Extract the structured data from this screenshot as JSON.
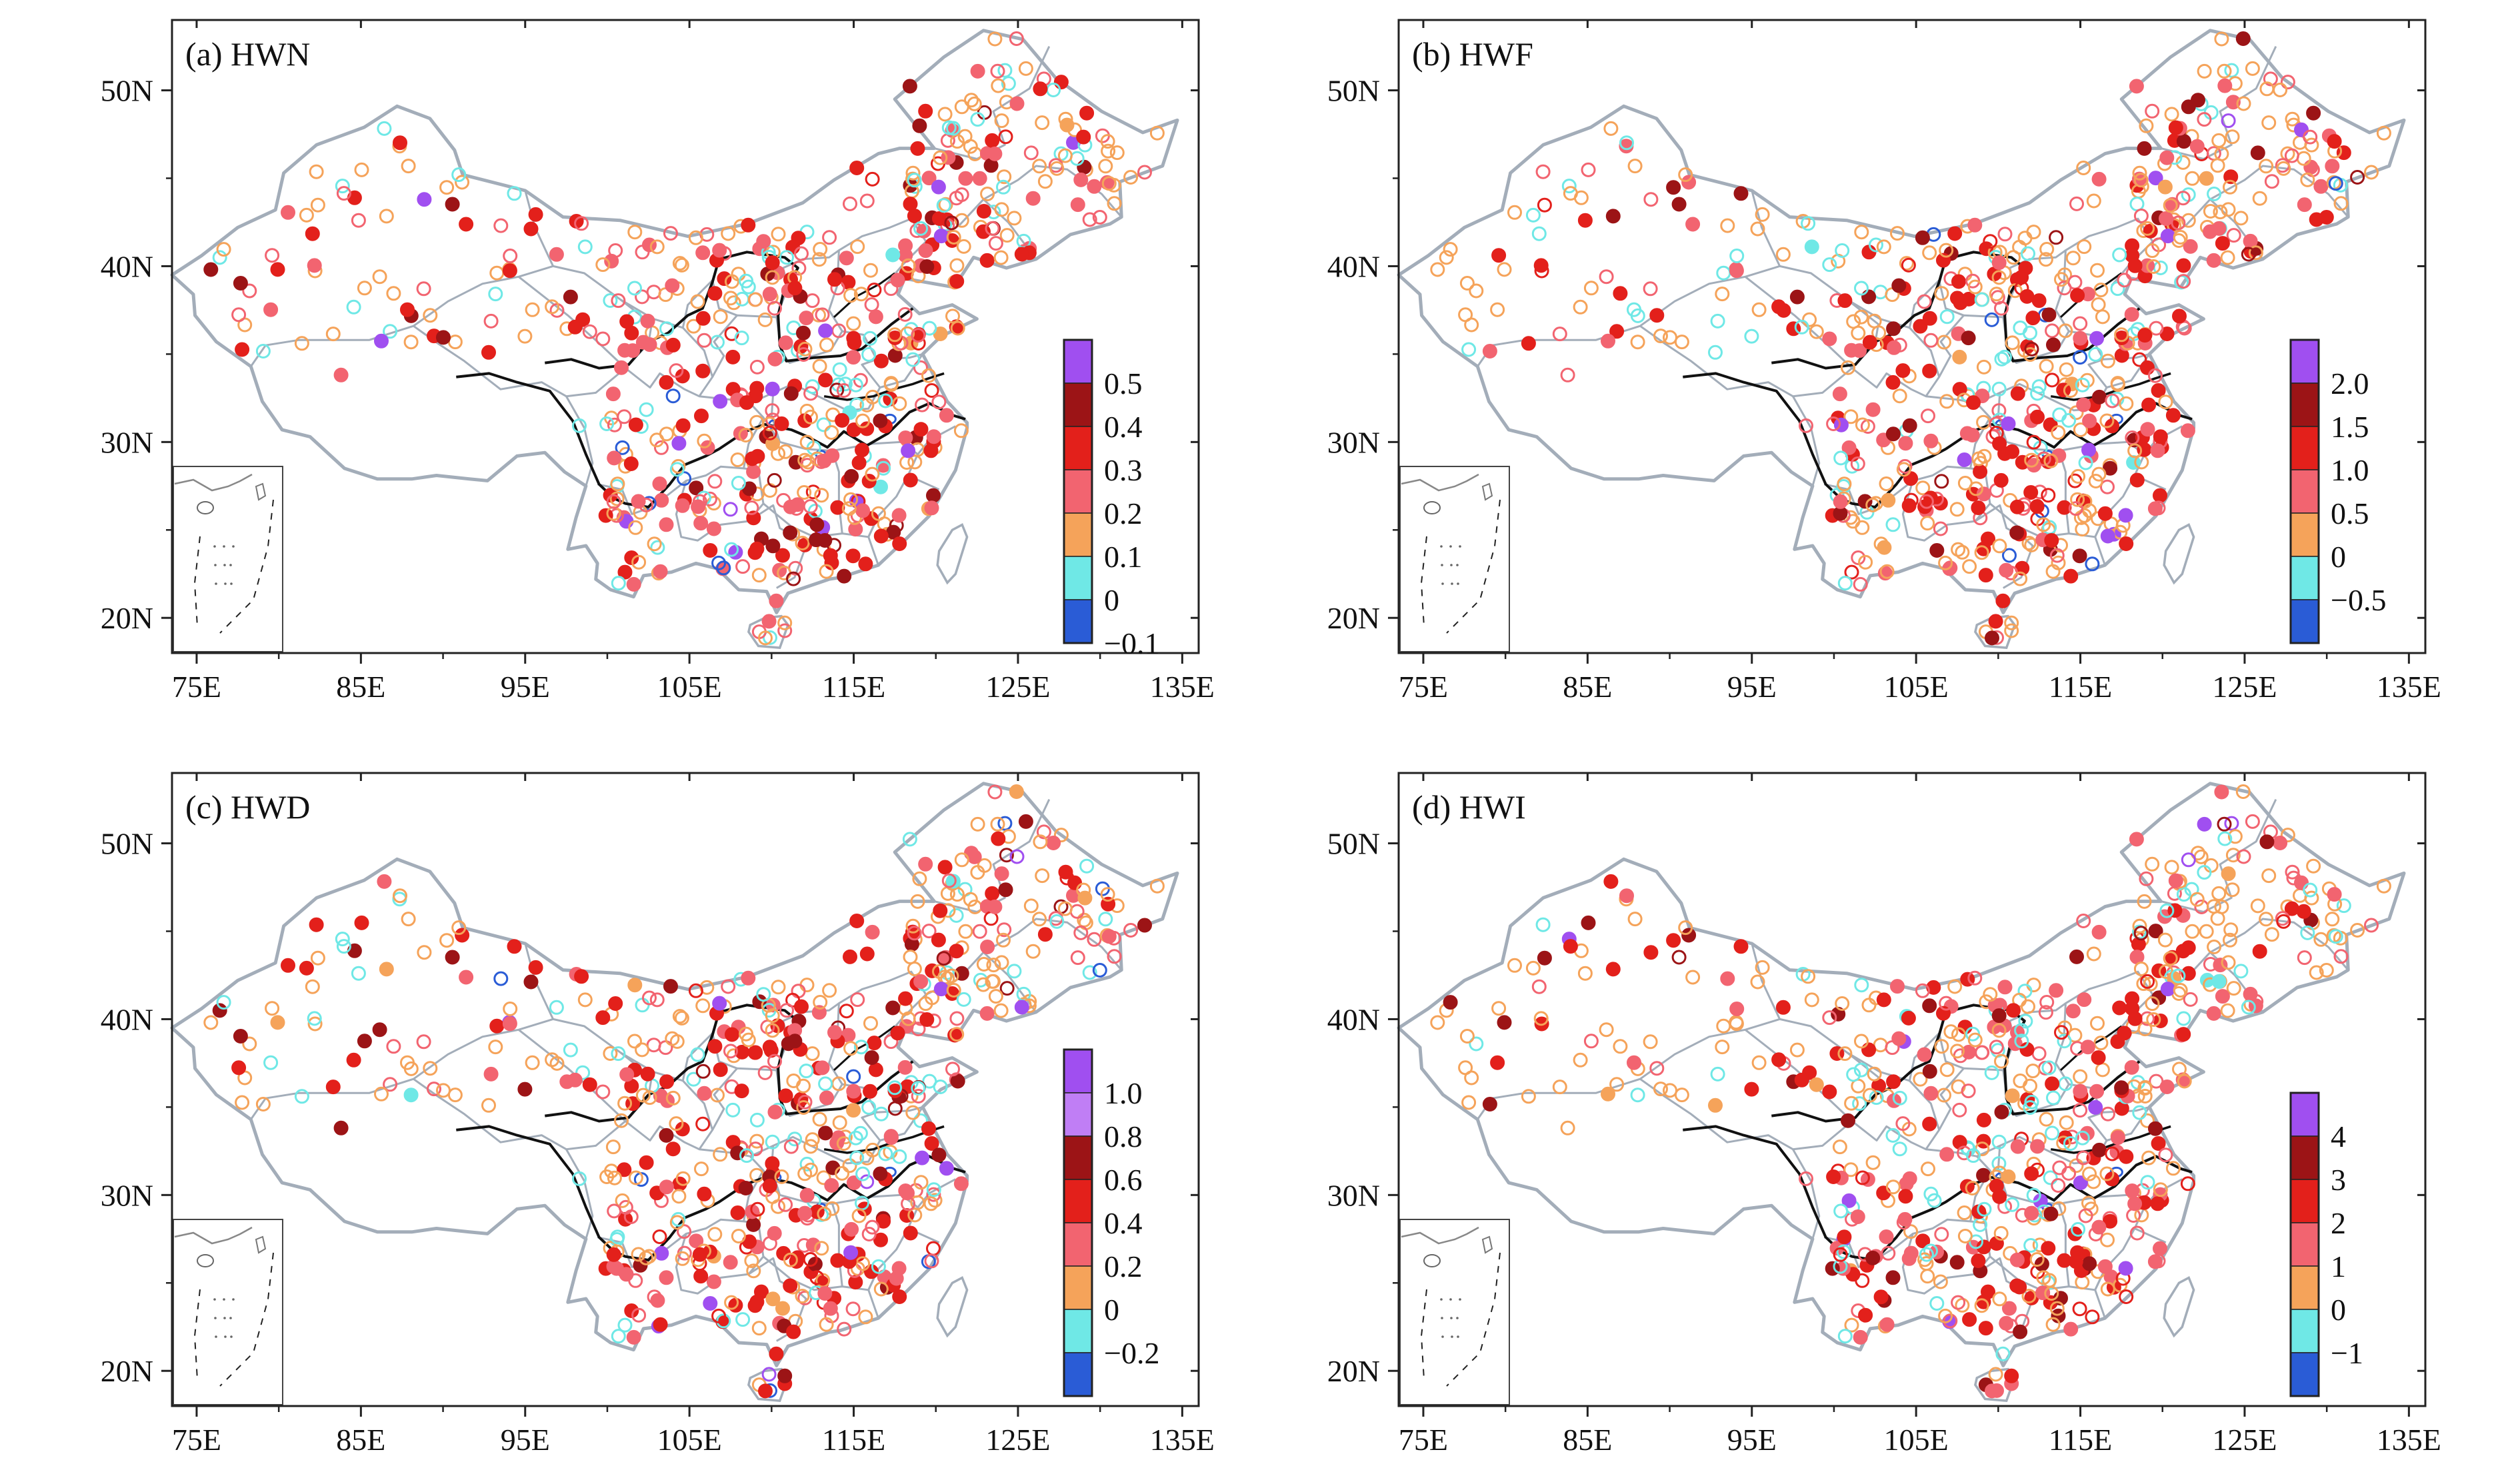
{
  "figure": {
    "lon_ticks": [
      "75E",
      "85E",
      "95E",
      "105E",
      "115E",
      "125E",
      "135E"
    ],
    "lat_ticks": [
      "20N",
      "30N",
      "40N",
      "50N"
    ],
    "lon_range": [
      73.5,
      136
    ],
    "lat_range": [
      18,
      54
    ],
    "colors": {
      "blue": "#2a5cd6",
      "cyan": "#6fe8e6",
      "orange": "#f5a35a",
      "pink": "#f26470",
      "red": "#e3201b",
      "darkred": "#9c1416",
      "purple": "#a04ff0",
      "lightpurple": "#c07ef5",
      "border": "#a3adb9",
      "river": "#111111"
    }
  },
  "panels": [
    {
      "id": "a",
      "label": "(a) HWN",
      "legend_labels": [
        "0.5",
        "0.4",
        "0.3",
        "0.2",
        "0.1",
        "0",
        "−0.1"
      ],
      "legend_colors": [
        "#a04ff0",
        "#9c1416",
        "#e3201b",
        "#f26470",
        "#f5a35a",
        "#6fe8e6",
        "#2a5cd6"
      ],
      "mix": {
        "blue": 0.01,
        "cyan": 0.11,
        "orange": 0.3,
        "pink": 0.26,
        "red": 0.21,
        "darkred": 0.08,
        "purple": 0.03
      }
    },
    {
      "id": "b",
      "label": "(b) HWF",
      "legend_labels": [
        "2.0",
        "1.5",
        "1.0",
        "0.5",
        "0",
        "−0.5"
      ],
      "legend_colors": [
        "#a04ff0",
        "#9c1416",
        "#e3201b",
        "#f26470",
        "#f5a35a",
        "#6fe8e6",
        "#2a5cd6"
      ],
      "mix": {
        "blue": 0.01,
        "cyan": 0.1,
        "orange": 0.33,
        "pink": 0.27,
        "red": 0.2,
        "darkred": 0.07,
        "purple": 0.02
      }
    },
    {
      "id": "c",
      "label": "(c) HWD",
      "legend_labels": [
        "1.0",
        "0.8",
        "0.6",
        "0.4",
        "0.2",
        "0",
        "−0.2"
      ],
      "legend_colors": [
        "#a04ff0",
        "#c07ef5",
        "#9c1416",
        "#e3201b",
        "#f26470",
        "#f5a35a",
        "#6fe8e6",
        "#2a5cd6"
      ],
      "mix": {
        "blue": 0.01,
        "cyan": 0.1,
        "orange": 0.3,
        "pink": 0.26,
        "red": 0.22,
        "darkred": 0.08,
        "purple": 0.03
      }
    },
    {
      "id": "d",
      "label": "(d) HWI",
      "legend_labels": [
        "4",
        "3",
        "2",
        "1",
        "0",
        "−1"
      ],
      "legend_colors": [
        "#a04ff0",
        "#9c1416",
        "#e3201b",
        "#f26470",
        "#f5a35a",
        "#6fe8e6",
        "#2a5cd6"
      ],
      "mix": {
        "blue": 0.0,
        "cyan": 0.1,
        "orange": 0.36,
        "pink": 0.26,
        "red": 0.19,
        "darkred": 0.07,
        "purple": 0.02
      }
    }
  ]
}
